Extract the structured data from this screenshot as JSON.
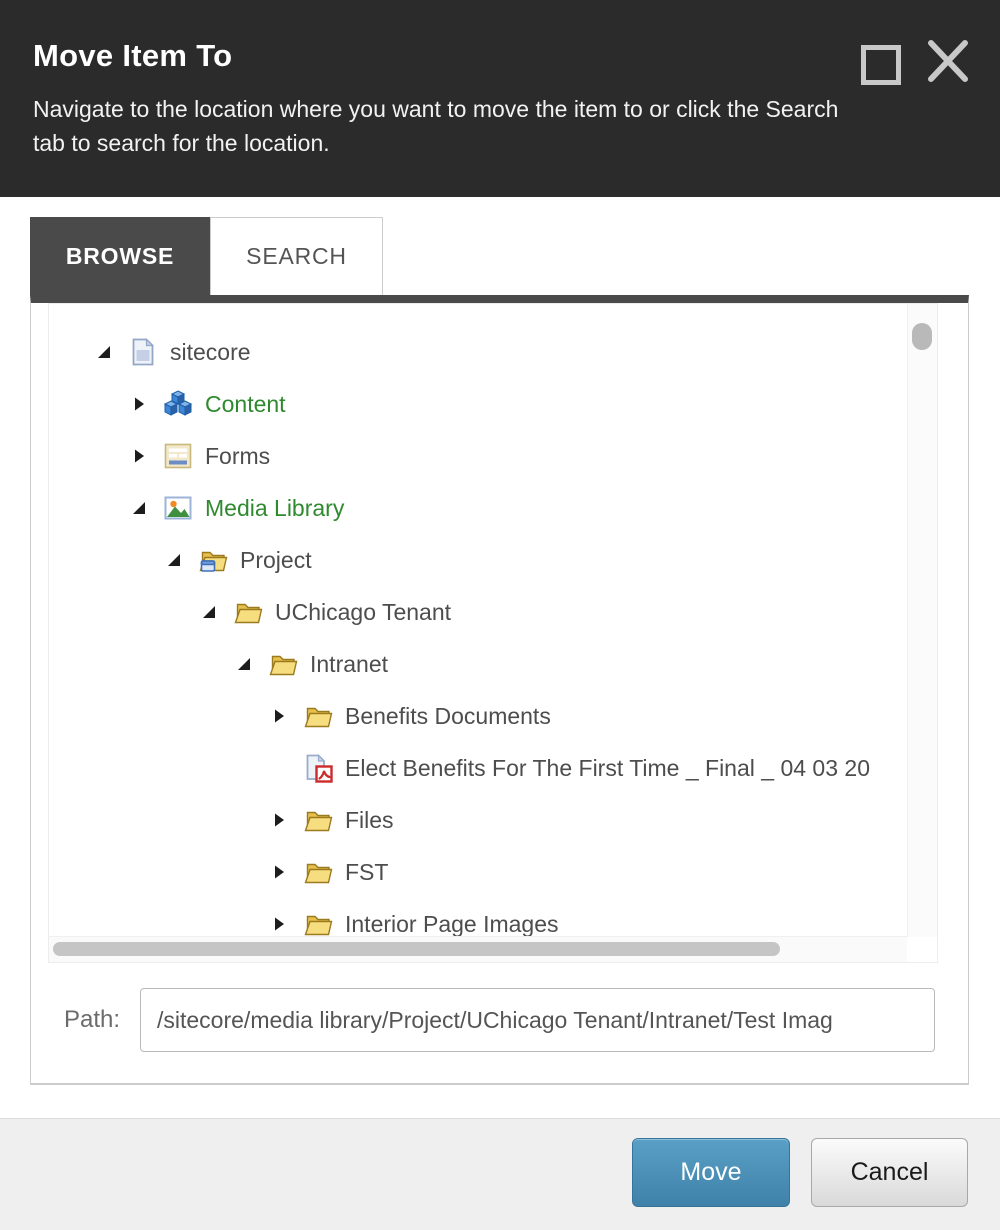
{
  "dialog": {
    "title": "Move Item To",
    "subtitle": "Navigate to the location where you want to move the item to or click the Search tab to search for the location."
  },
  "tabs": [
    {
      "label": "BROWSE",
      "active": true
    },
    {
      "label": "SEARCH",
      "active": false
    }
  ],
  "tree": {
    "items": [
      {
        "label": "sitecore",
        "level": 0,
        "state": "expanded",
        "icon": "document-icon",
        "color": "default"
      },
      {
        "label": "Content",
        "level": 1,
        "state": "collapsed",
        "icon": "content-cubes-icon",
        "color": "green"
      },
      {
        "label": "Forms",
        "level": 1,
        "state": "collapsed",
        "icon": "form-icon",
        "color": "default"
      },
      {
        "label": "Media Library",
        "level": 1,
        "state": "expanded",
        "icon": "media-image-icon",
        "color": "green"
      },
      {
        "label": "Project",
        "level": 2,
        "state": "expanded",
        "icon": "folder-app-icon",
        "color": "default"
      },
      {
        "label": "UChicago Tenant",
        "level": 3,
        "state": "expanded",
        "icon": "folder-icon",
        "color": "default"
      },
      {
        "label": "Intranet",
        "level": 4,
        "state": "expanded",
        "icon": "folder-icon",
        "color": "default"
      },
      {
        "label": "Benefits Documents",
        "level": 5,
        "state": "collapsed",
        "icon": "folder-icon",
        "color": "default"
      },
      {
        "label": "Elect Benefits For The First Time _ Final _ 04 03 20",
        "level": 5,
        "state": "leaf",
        "icon": "pdf-icon",
        "color": "default"
      },
      {
        "label": "Files",
        "level": 5,
        "state": "collapsed",
        "icon": "folder-icon",
        "color": "default"
      },
      {
        "label": "FST",
        "level": 5,
        "state": "collapsed",
        "icon": "folder-icon",
        "color": "default"
      },
      {
        "label": "Interior Page Images",
        "level": 5,
        "state": "collapsed",
        "icon": "folder-icon",
        "color": "default"
      }
    ]
  },
  "path": {
    "label": "Path:",
    "value": "/sitecore/media library/Project/UChicago Tenant/Intranet/Test Imag"
  },
  "footer": {
    "move_label": "Move",
    "cancel_label": "Cancel"
  },
  "colors": {
    "header_bg": "#2b2b2b",
    "tab_active_bg": "#4a4a4a",
    "tree_green": "#2f8a2f",
    "move_button_blue": "#4688b0"
  }
}
